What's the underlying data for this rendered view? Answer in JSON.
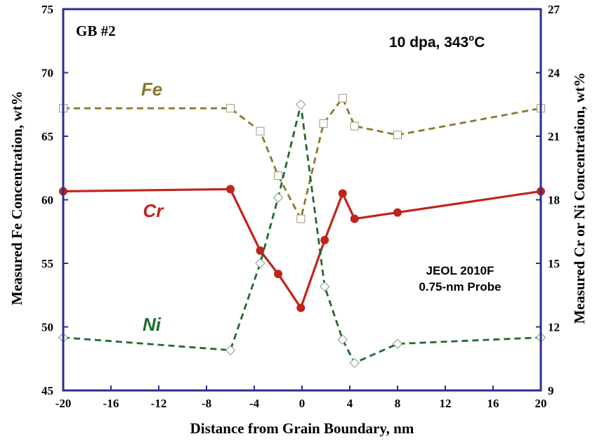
{
  "chart_data": {
    "type": "line",
    "xlabel": "Distance from Grain Boundary, nm",
    "ylabel_left": "Measured Fe Concentration, wt%",
    "ylabel_right": "Measured Cr or Ni Concentration, wt%",
    "xlim": [
      -20,
      20
    ],
    "ylim_left": [
      45,
      75
    ],
    "ylim_right": [
      9,
      27
    ],
    "xticks": [
      "-20",
      "-16",
      "-12",
      "-8",
      "-4",
      "0",
      "4",
      "8",
      "12",
      "16",
      "20"
    ],
    "yticks_left": [
      "45",
      "50",
      "55",
      "60",
      "65",
      "70",
      "75"
    ],
    "yticks_right": [
      "9",
      "12",
      "15",
      "18",
      "21",
      "24",
      "27"
    ],
    "grid": false,
    "annotations": {
      "gb_label": "GB #2",
      "condition": "10 dpa, 343",
      "condition_sup": "o",
      "condition_unit": "C",
      "instrument": "JEOL 2010F",
      "probe": "0.75-nm Probe"
    },
    "series": [
      {
        "name": "Fe",
        "axis": "left",
        "color": "#8a7a2a",
        "marker": "square-open",
        "line": "dashed",
        "x": [
          -20,
          -6,
          -3.5,
          -2,
          -0.1,
          1.8,
          3.4,
          4.4,
          8,
          20
        ],
        "y": [
          67.2,
          67.2,
          65.4,
          61.9,
          58.5,
          66.0,
          68.0,
          65.8,
          65.1,
          67.2
        ]
      },
      {
        "name": "Cr",
        "axis": "right",
        "color": "#c0241c",
        "marker": "circle-filled",
        "line": "solid",
        "x": [
          -20,
          -6,
          -3.5,
          -2,
          -0.1,
          1.9,
          3.4,
          4.4,
          8,
          20
        ],
        "y": [
          18.4,
          18.5,
          15.6,
          14.5,
          12.9,
          16.1,
          18.3,
          17.1,
          17.4,
          18.4
        ]
      },
      {
        "name": "Ni",
        "axis": "right",
        "color": "#1e6b2e",
        "marker": "diamond-open",
        "line": "dashed",
        "x": [
          -20,
          -6,
          -3.5,
          -2,
          -0.1,
          1.9,
          3.4,
          4.4,
          8,
          20
        ],
        "y": [
          11.5,
          10.9,
          15.0,
          18.1,
          22.5,
          13.9,
          11.4,
          10.3,
          11.2,
          11.5
        ]
      }
    ]
  }
}
